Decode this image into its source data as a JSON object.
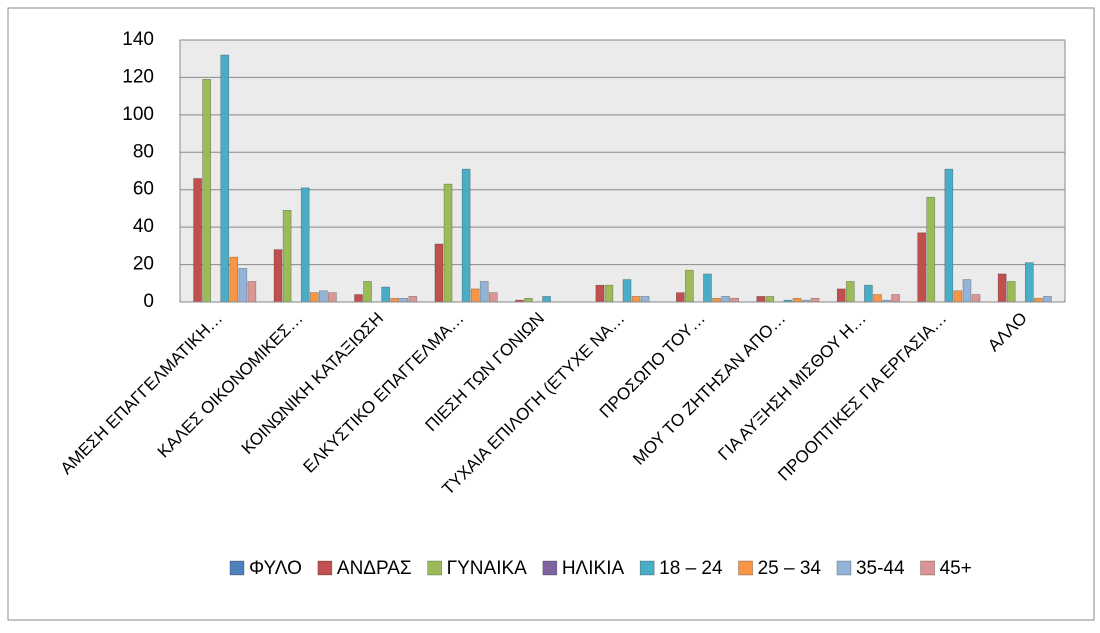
{
  "chart_data": {
    "type": "bar",
    "categories": [
      "ΑΜΕΣΗ ΕΠΑΓΓΕΛΜΑΤΙΚΗ…",
      "ΚΑΛΕΣ ΟΙΚΟΝΟΜΙΚΕΣ…",
      "ΚΟΙΝΩΝΙΚΗ ΚΑΤΑΞΙΩΣΗ",
      "ΕΛΚΥΣΤΙΚΟ ΕΠΑΓΓΕΛΜΑ…",
      "ΠΙΕΣΗ ΤΩΝ ΓΟΝΙΩΝ",
      "ΤΥΧΑΙΑ ΕΠΙΛΟΓΗ (ΕΤΥΧΕ ΝΑ…",
      "ΠΡΟΣΩΠΟ ΤΟΥ…",
      "ΜΟΥ ΤΟ ΖΗΤΗΣΑΝ ΑΠΟ…",
      "ΓΙΑ ΑΥΞΗΣΗ ΜΙΣΘΟΥ Η…",
      "ΠΡΟΟΠΤΙΚΕΣ ΓΙΑ ΕΡΓΑΣΙΑ…",
      "ΑΛΛΟ"
    ],
    "series": [
      {
        "name": "ΦΥΛΟ",
        "color": "#4f81bd",
        "values": [
          0,
          0,
          0,
          0,
          0,
          0,
          0,
          0,
          0,
          0,
          0
        ]
      },
      {
        "name": "ΑΝΔΡΑΣ",
        "color": "#c0504d",
        "values": [
          66,
          28,
          4,
          31,
          1,
          9,
          5,
          3,
          7,
          37,
          15
        ]
      },
      {
        "name": "ΓΥΝΑΙΚΑ",
        "color": "#9bbb59",
        "values": [
          119,
          49,
          11,
          63,
          2,
          9,
          17,
          3,
          11,
          56,
          11
        ]
      },
      {
        "name": "ΗΛΙΚΙΑ",
        "color": "#8064a2",
        "values": [
          0,
          0,
          0,
          0,
          0,
          0,
          0,
          0,
          0,
          0,
          0
        ]
      },
      {
        "name": "18 – 24",
        "color": "#4bacc6",
        "values": [
          132,
          61,
          8,
          71,
          3,
          12,
          15,
          1,
          9,
          71,
          21
        ]
      },
      {
        "name": "25 – 34",
        "color": "#f79646",
        "values": [
          24,
          5,
          2,
          7,
          0,
          3,
          2,
          2,
          4,
          6,
          2
        ]
      },
      {
        "name": "35-44",
        "color": "#95b3d7",
        "values": [
          18,
          6,
          2,
          11,
          0,
          3,
          3,
          1,
          1,
          12,
          3
        ]
      },
      {
        "name": "45+",
        "color": "#d99694",
        "values": [
          11,
          5,
          3,
          5,
          0,
          0,
          2,
          2,
          4,
          4,
          0
        ]
      }
    ],
    "ylim": [
      0,
      140
    ],
    "yticks": [
      0,
      20,
      40,
      60,
      80,
      100,
      120,
      140
    ],
    "grid": true,
    "legend": "bottom"
  }
}
